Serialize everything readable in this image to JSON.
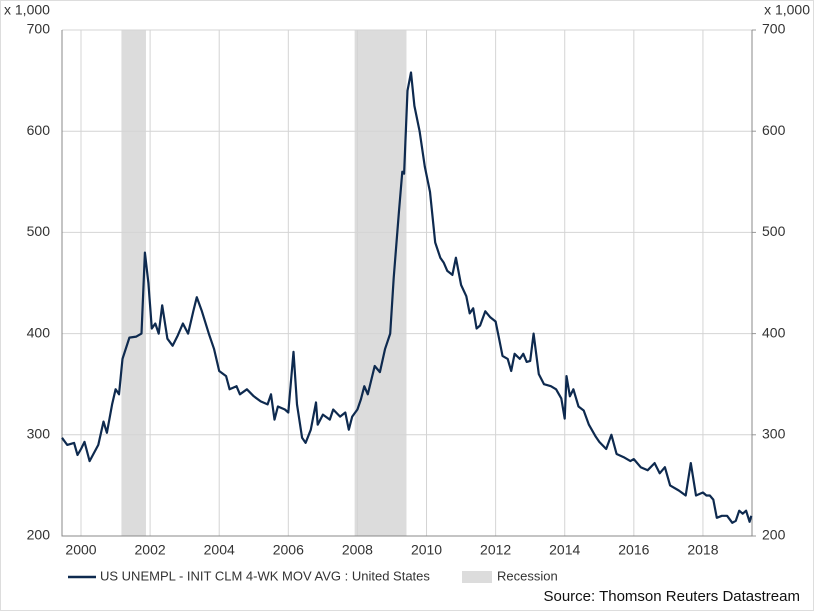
{
  "chart_data": {
    "type": "line",
    "y_unit_label": "x 1,000",
    "y2_unit_label": "x 1,000",
    "source": "Source: Thomson Reuters Datastream",
    "xlim": [
      1999.45,
      2019.42
    ],
    "xticks": [
      2000,
      2002,
      2004,
      2006,
      2008,
      2010,
      2012,
      2014,
      2016,
      2018
    ],
    "ylim": [
      200,
      700
    ],
    "yticks": [
      200,
      300,
      400,
      500,
      600,
      700
    ],
    "y2lim": [
      200,
      700
    ],
    "y2ticks": [
      200,
      300,
      400,
      500,
      600,
      700
    ],
    "grid": true,
    "recessions": {
      "name": "Recession",
      "color": "#dcdcdc",
      "periods": [
        [
          2001.17,
          2001.88
        ],
        [
          2007.92,
          2009.42
        ]
      ]
    },
    "series": [
      {
        "name": "US UNEMPL - INIT CLM 4-WK MOV AVG : United States",
        "color": "#0e2a4f",
        "x": [
          1999.45,
          1999.6,
          1999.8,
          1999.9,
          2000.0,
          2000.1,
          2000.25,
          2000.5,
          2000.65,
          2000.75,
          2000.9,
          2001.0,
          2001.1,
          2001.2,
          2001.4,
          2001.6,
          2001.75,
          2001.8,
          2001.85,
          2001.95,
          2002.05,
          2002.15,
          2002.25,
          2002.35,
          2002.5,
          2002.65,
          2002.8,
          2002.95,
          2003.1,
          2003.25,
          2003.35,
          2003.5,
          2003.7,
          2003.85,
          2004.0,
          2004.2,
          2004.3,
          2004.5,
          2004.6,
          2004.8,
          2005.0,
          2005.2,
          2005.4,
          2005.5,
          2005.6,
          2005.7,
          2005.9,
          2006.0,
          2006.15,
          2006.25,
          2006.4,
          2006.5,
          2006.65,
          2006.8,
          2006.85,
          2007.0,
          2007.2,
          2007.3,
          2007.5,
          2007.65,
          2007.75,
          2007.85,
          2008.0,
          2008.1,
          2008.2,
          2008.3,
          2008.5,
          2008.65,
          2008.8,
          2008.95,
          2009.05,
          2009.2,
          2009.3,
          2009.35,
          2009.45,
          2009.55,
          2009.65,
          2009.8,
          2009.95,
          2010.1,
          2010.25,
          2010.4,
          2010.5,
          2010.6,
          2010.75,
          2010.85,
          2011.0,
          2011.15,
          2011.25,
          2011.35,
          2011.45,
          2011.55,
          2011.7,
          2011.85,
          2012.0,
          2012.1,
          2012.2,
          2012.35,
          2012.45,
          2012.55,
          2012.7,
          2012.8,
          2012.9,
          2013.0,
          2013.1,
          2013.25,
          2013.4,
          2013.6,
          2013.75,
          2013.9,
          2014.0,
          2014.05,
          2014.15,
          2014.25,
          2014.4,
          2014.55,
          2014.7,
          2014.9,
          2015.0,
          2015.2,
          2015.35,
          2015.5,
          2015.7,
          2015.9,
          2016.0,
          2016.2,
          2016.4,
          2016.6,
          2016.75,
          2016.9,
          2017.05,
          2017.3,
          2017.5,
          2017.65,
          2017.8,
          2018.0,
          2018.1,
          2018.2,
          2018.3,
          2018.4,
          2018.55,
          2018.7,
          2018.85,
          2018.95,
          2019.05,
          2019.15,
          2019.25,
          2019.35,
          2019.4
        ],
        "values": [
          297,
          290,
          292,
          280,
          286,
          293,
          274,
          290,
          313,
          302,
          330,
          345,
          340,
          375,
          396,
          397,
          400,
          440,
          480,
          450,
          405,
          410,
          400,
          428,
          395,
          388,
          398,
          410,
          400,
          422,
          436,
          422,
          400,
          385,
          363,
          358,
          345,
          348,
          340,
          345,
          338,
          333,
          330,
          340,
          315,
          328,
          325,
          322,
          382,
          330,
          297,
          292,
          305,
          332,
          310,
          320,
          315,
          325,
          318,
          322,
          305,
          318,
          325,
          335,
          348,
          340,
          368,
          362,
          385,
          400,
          455,
          520,
          560,
          558,
          640,
          658,
          625,
          600,
          565,
          540,
          490,
          475,
          470,
          462,
          458,
          475,
          448,
          437,
          420,
          425,
          405,
          408,
          422,
          416,
          412,
          395,
          378,
          375,
          363,
          380,
          375,
          380,
          372,
          373,
          400,
          360,
          350,
          348,
          345,
          336,
          316,
          358,
          338,
          345,
          328,
          324,
          310,
          298,
          293,
          286,
          300,
          281,
          278,
          274,
          276,
          268,
          265,
          272,
          262,
          268,
          250,
          245,
          240,
          272,
          240,
          243,
          240,
          240,
          236,
          218,
          220,
          220,
          213,
          215,
          225,
          222,
          225,
          214,
          220
        ]
      }
    ]
  }
}
